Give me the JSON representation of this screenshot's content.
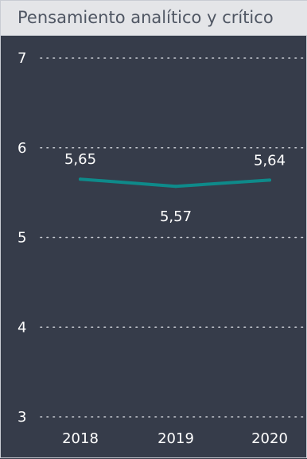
{
  "colors": {
    "background": "#363c4a",
    "title_bar": "#e4e5e8",
    "title_text": "#4f5663",
    "line": "#0e8a8a",
    "grid": "#c9ccd3",
    "text": "#ffffff"
  },
  "chart_data": {
    "type": "line",
    "title": "Pensamiento analítico y crítico",
    "xlabel": "",
    "ylabel": "",
    "x": [
      "2018",
      "2019",
      "2020"
    ],
    "series": [
      {
        "values": [
          5.65,
          5.57,
          5.64
        ],
        "labels": [
          "5,65",
          "5,57",
          "5,64"
        ]
      }
    ],
    "ylim": [
      3,
      7
    ],
    "yticks": [
      "3",
      "4",
      "5",
      "6",
      "7"
    ],
    "grid": true,
    "grid_style": "dotted"
  }
}
